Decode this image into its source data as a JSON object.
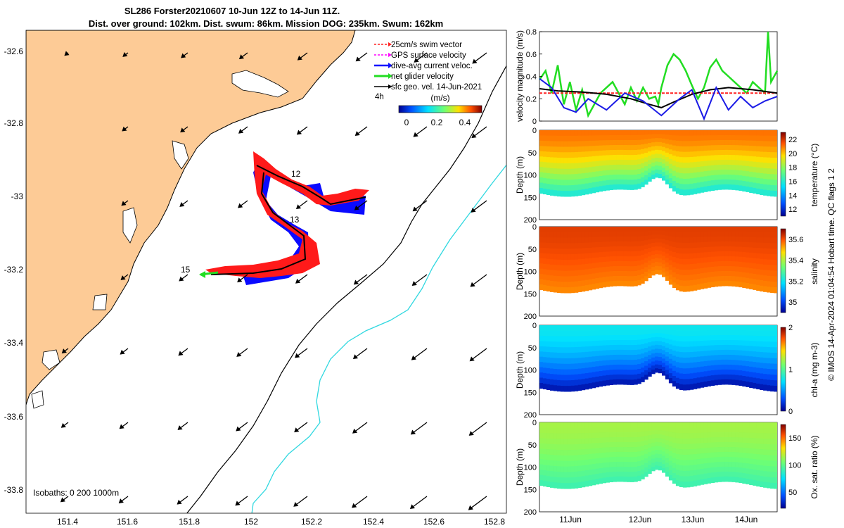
{
  "figure": {
    "title_line1": "SL286 Forster20210607 10-Jun 12Z to 14-Jun 11Z.",
    "title_line2": "Dist. over ground: 102km. Dist. swum: 86km. Mission DOG: 235km. Swum: 162km",
    "credit": "© IMOS 14-Apr-2024 01:04:54 Hobart time. QC flags 1  2"
  },
  "map": {
    "lon_ticks": [
      "151.4",
      "151.6",
      "151.8",
      "152",
      "152.2",
      "152.4",
      "152.6",
      "152.8"
    ],
    "lat_ticks": [
      "-32.6",
      "-32.8",
      "-33",
      "-33.2",
      "-33.4",
      "-33.6",
      "-33.8"
    ],
    "isobaths_label": "Isobaths: 0   200   1000m",
    "day_labels": [
      "12",
      "13",
      "15"
    ],
    "legend": {
      "items": [
        {
          "label": "25cm/s swim vector",
          "color": "#ff2020"
        },
        {
          "label": "GPS surface velocity",
          "color": "#ff00ff"
        },
        {
          "label": "dive-avg current veloc.",
          "color": "#1010ff"
        },
        {
          "label": "net glider velocity",
          "color": "#22dd22"
        },
        {
          "label": "sfc geo. vel. 14-Jun-2021",
          "color": "#000000"
        }
      ],
      "interval": "4h",
      "unit": "(m/s)",
      "colorbar_ticks": [
        "0",
        "0.2",
        "0.4"
      ]
    },
    "colors": {
      "land": "#fdcb96",
      "track_red": "#ff1a1a",
      "track_blue": "#0a0aff",
      "glider": "#22dd22",
      "isobath_1000": "#30d8e0"
    }
  },
  "chart_data": [
    {
      "type": "line",
      "ylabel": "velocity magnitude (m/s)",
      "ylim": [
        0,
        0.8
      ],
      "yticks": [
        "0",
        "0.2",
        "0.4",
        "0.6",
        "0.8"
      ],
      "x_days": [
        10.5,
        14.4
      ],
      "series": [
        {
          "name": "net glider velocity",
          "color": "#22dd22",
          "x": [
            10.5,
            10.6,
            10.7,
            10.8,
            10.9,
            11.0,
            11.1,
            11.2,
            11.3,
            11.5,
            11.7,
            11.9,
            12.0,
            12.1,
            12.2,
            12.3,
            12.4,
            12.45,
            12.5,
            12.6,
            12.7,
            12.8,
            12.9,
            13.0,
            13.1,
            13.2,
            13.3,
            13.4,
            13.5,
            13.6,
            13.7,
            13.8,
            13.9,
            14.0,
            14.1,
            14.2,
            14.25,
            14.3,
            14.4
          ],
          "y": [
            0.37,
            0.45,
            0.25,
            0.5,
            0.15,
            0.35,
            0.1,
            0.28,
            0.05,
            0.25,
            0.35,
            0.15,
            0.3,
            0.18,
            0.3,
            0.2,
            0.22,
            0.15,
            0.3,
            0.5,
            0.6,
            0.55,
            0.45,
            0.32,
            0.2,
            0.3,
            0.48,
            0.55,
            0.45,
            0.4,
            0.35,
            0.3,
            0.25,
            0.35,
            0.3,
            0.25,
            0.8,
            0.35,
            0.45
          ]
        },
        {
          "name": "swim vector",
          "color": "#ff2020",
          "x": [
            10.5,
            11.0,
            11.5,
            12.0,
            12.5,
            13.0,
            13.5,
            14.0,
            14.4
          ],
          "y": [
            0.25,
            0.25,
            0.25,
            0.25,
            0.25,
            0.25,
            0.25,
            0.25,
            0.25
          ]
        },
        {
          "name": "sfc geo. vel.",
          "color": "#000000",
          "x": [
            10.5,
            10.8,
            11.2,
            11.6,
            12.0,
            12.3,
            12.5,
            12.7,
            13.0,
            13.3,
            13.6,
            14.0,
            14.4
          ],
          "y": [
            0.29,
            0.27,
            0.26,
            0.24,
            0.2,
            0.15,
            0.12,
            0.17,
            0.24,
            0.28,
            0.3,
            0.28,
            0.25
          ]
        },
        {
          "name": "dive-avg current",
          "color": "#1a1ae6",
          "x": [
            10.5,
            10.7,
            10.9,
            11.1,
            11.3,
            11.6,
            11.9,
            12.2,
            12.5,
            12.8,
            13.0,
            13.2,
            13.4,
            13.6,
            13.8,
            14.0,
            14.2,
            14.4
          ],
          "y": [
            0.38,
            0.3,
            0.12,
            0.08,
            0.2,
            0.1,
            0.25,
            0.18,
            0.05,
            0.2,
            0.28,
            0.02,
            0.3,
            0.1,
            0.22,
            0.12,
            0.18,
            0.22
          ]
        }
      ]
    },
    {
      "type": "heatmap",
      "ylabel": "Depth (m)",
      "cbar_label": "temperature (°C)",
      "cbar_ticks": [
        "12",
        "14",
        "16",
        "18",
        "20",
        "22"
      ],
      "clim": [
        11,
        23
      ],
      "ylim": [
        0,
        200
      ],
      "yticks": [
        "0",
        "50",
        "100",
        "150",
        "200"
      ],
      "surface_value": 21,
      "deep_value": 16
    },
    {
      "type": "heatmap",
      "ylabel": "Depth (m)",
      "cbar_label": "salinity",
      "cbar_ticks": [
        "35",
        "35.2",
        "35.4",
        "35.6"
      ],
      "clim": [
        34.9,
        35.7
      ],
      "ylim": [
        0,
        200
      ],
      "yticks": [
        "0",
        "50",
        "100",
        "150",
        "200"
      ],
      "surface_value": 35.62,
      "deep_value": 35.55
    },
    {
      "type": "heatmap",
      "ylabel": "Depth (m)",
      "cbar_label": "chl-a (mg m-3)",
      "cbar_ticks": [
        "0",
        "1",
        "2"
      ],
      "clim": [
        0,
        2
      ],
      "ylim": [
        0,
        200
      ],
      "yticks": [
        "0",
        "50",
        "100",
        "150",
        "200"
      ],
      "surface_value": 0.75,
      "deep_value": 0.1
    },
    {
      "type": "heatmap",
      "ylabel": "Depth (m)",
      "cbar_label": "Ox. sat. ratio (%)",
      "cbar_ticks": [
        "50",
        "100",
        "150"
      ],
      "clim": [
        20,
        175
      ],
      "ylim": [
        0,
        200
      ],
      "yticks": [
        "0",
        "50",
        "100",
        "150",
        "200"
      ],
      "surface_value": 115,
      "deep_value": 92
    },
    {
      "type": "axis",
      "x_ticks": [
        "11Jun",
        "12Jun",
        "13Jun",
        "14Jun"
      ]
    }
  ]
}
